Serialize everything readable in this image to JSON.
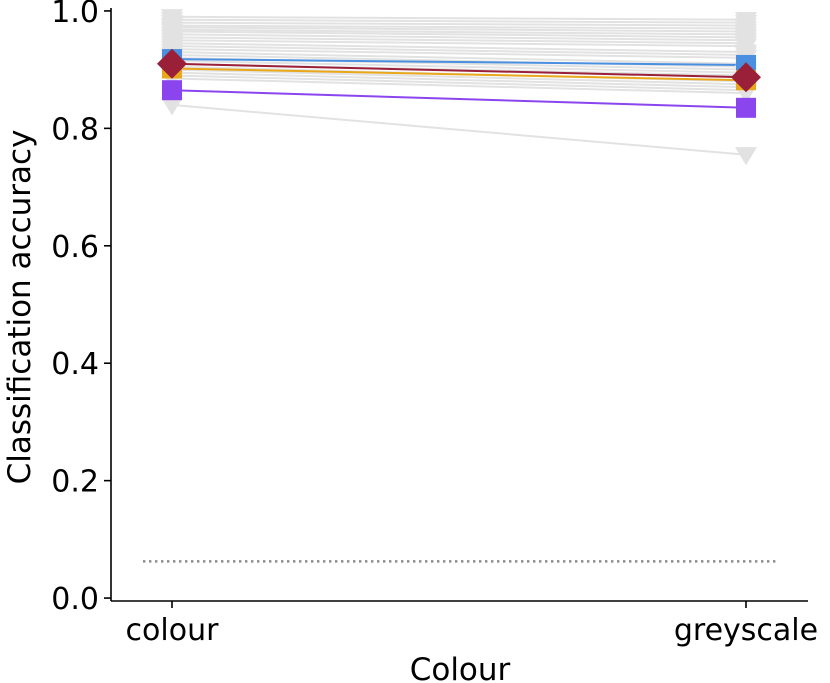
{
  "chart_data": {
    "type": "line",
    "title": "",
    "xlabel": "Colour",
    "ylabel": "Classification accuracy",
    "categories": [
      "colour",
      "greyscale"
    ],
    "ylim": [
      -0.005,
      1.005
    ],
    "yticks": [
      0.0,
      0.2,
      0.4,
      0.6,
      0.8,
      1.0
    ],
    "ytick_labels": [
      "0.0",
      "0.2",
      "0.4",
      "0.6",
      "0.8",
      "1.0"
    ],
    "grid": false,
    "chance_level": 0.0625,
    "background_series": {
      "color": "#e2e2e2",
      "marker": "triangle-down",
      "values": [
        [
          0.99,
          0.985
        ],
        [
          0.985,
          0.98
        ],
        [
          0.98,
          0.975
        ],
        [
          0.975,
          0.97
        ],
        [
          0.972,
          0.965
        ],
        [
          0.968,
          0.96
        ],
        [
          0.965,
          0.955
        ],
        [
          0.96,
          0.95
        ],
        [
          0.955,
          0.945
        ],
        [
          0.95,
          0.94
        ],
        [
          0.945,
          0.93
        ],
        [
          0.94,
          0.925
        ],
        [
          0.935,
          0.92
        ],
        [
          0.93,
          0.91
        ],
        [
          0.925,
          0.905
        ],
        [
          0.92,
          0.9
        ],
        [
          0.915,
          0.895
        ],
        [
          0.91,
          0.89
        ],
        [
          0.905,
          0.88
        ],
        [
          0.9,
          0.875
        ],
        [
          0.895,
          0.87
        ],
        [
          0.89,
          0.865
        ],
        [
          0.885,
          0.86
        ],
        [
          0.84,
          0.755
        ]
      ]
    },
    "highlight_series": [
      {
        "color": "#4a8fe0",
        "marker": "square",
        "values": [
          0.918,
          0.908
        ]
      },
      {
        "color": "#e9a81c",
        "marker": "square",
        "values": [
          0.902,
          0.882
        ]
      },
      {
        "color": "#8b45ef",
        "marker": "square",
        "values": [
          0.865,
          0.835
        ]
      },
      {
        "color": "#9a1f38",
        "marker": "diamond",
        "values": [
          0.91,
          0.887
        ]
      }
    ]
  }
}
